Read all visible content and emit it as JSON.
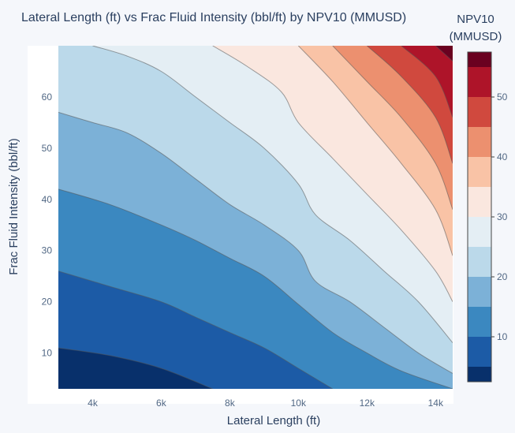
{
  "chart_data": {
    "type": "contour",
    "title": "Lateral Length (ft) vs Frac Fluid Intensity (bbl/ft) by NPV10 (MMUSD)",
    "xlabel": "Lateral Length (ft)",
    "ylabel": "Frac Fluid Intensity (bbl/ft)",
    "xlim": [
      3000,
      14500
    ],
    "ylim": [
      3,
      70
    ],
    "x_ticks": [
      {
        "value": 4000,
        "label": "4k"
      },
      {
        "value": 6000,
        "label": "6k"
      },
      {
        "value": 8000,
        "label": "8k"
      },
      {
        "value": 10000,
        "label": "10k"
      },
      {
        "value": 12000,
        "label": "12k"
      },
      {
        "value": 14000,
        "label": "14k"
      }
    ],
    "y_ticks": [
      {
        "value": 10,
        "label": "10"
      },
      {
        "value": 20,
        "label": "20"
      },
      {
        "value": 30,
        "label": "30"
      },
      {
        "value": 40,
        "label": "40"
      },
      {
        "value": 50,
        "label": "50"
      },
      {
        "value": 60,
        "label": "60"
      }
    ],
    "colorbar": {
      "title_lines": [
        "NPV10",
        "(MMUSD)"
      ],
      "range": [
        2.5,
        57.5
      ],
      "ticks": [
        {
          "value": 10,
          "label": "10"
        },
        {
          "value": 20,
          "label": "20"
        },
        {
          "value": 30,
          "label": "30"
        },
        {
          "value": 40,
          "label": "40"
        },
        {
          "value": 50,
          "label": "50"
        }
      ]
    },
    "contour_levels": [
      5,
      10,
      15,
      20,
      25,
      30,
      35,
      40,
      45,
      50,
      55
    ],
    "band_colors": [
      "#08306b",
      "#1c5ba6",
      "#3b88c0",
      "#7cb1d7",
      "#bbd9ea",
      "#e4eef4",
      "#fae7df",
      "#f9c3a6",
      "#ec906f",
      "#d0493e",
      "#ae1429",
      "#6a0120"
    ],
    "contour_lines": [
      {
        "level": 5,
        "points": [
          [
            3000,
            11
          ],
          [
            4500,
            9.5
          ],
          [
            6000,
            7
          ],
          [
            7500,
            3
          ]
        ]
      },
      {
        "level": 10,
        "points": [
          [
            3000,
            26
          ],
          [
            4500,
            23
          ],
          [
            6000,
            20
          ],
          [
            7000,
            17
          ],
          [
            8000,
            14
          ],
          [
            9000,
            11
          ],
          [
            10000,
            7
          ],
          [
            11000,
            3
          ]
        ]
      },
      {
        "level": 15,
        "points": [
          [
            3000,
            42
          ],
          [
            4500,
            39
          ],
          [
            6000,
            35
          ],
          [
            7000,
            32
          ],
          [
            8000,
            28.5
          ],
          [
            9000,
            25
          ],
          [
            10000,
            19.5
          ],
          [
            11000,
            14
          ],
          [
            12000,
            10
          ],
          [
            13000,
            6.5
          ],
          [
            14500,
            3
          ]
        ]
      },
      {
        "level": 20,
        "points": [
          [
            3000,
            57
          ],
          [
            4000,
            55
          ],
          [
            5000,
            53
          ],
          [
            6000,
            49
          ],
          [
            7000,
            44
          ],
          [
            8000,
            39
          ],
          [
            9000,
            35
          ],
          [
            10000,
            30
          ],
          [
            10500,
            24
          ],
          [
            11500,
            20
          ],
          [
            12500,
            15
          ],
          [
            13500,
            10
          ],
          [
            14500,
            6
          ]
        ]
      },
      {
        "level": 25,
        "points": [
          [
            4000,
            70
          ],
          [
            5000,
            68
          ],
          [
            6000,
            65
          ],
          [
            7000,
            60
          ],
          [
            8000,
            55
          ],
          [
            9000,
            50
          ],
          [
            10000,
            43
          ],
          [
            10500,
            37
          ],
          [
            11500,
            32
          ],
          [
            12500,
            26
          ],
          [
            13500,
            20
          ],
          [
            14500,
            12
          ]
        ]
      },
      {
        "level": 30,
        "points": [
          [
            7500,
            70
          ],
          [
            8500,
            66
          ],
          [
            9500,
            61
          ],
          [
            10000,
            55
          ],
          [
            11000,
            48
          ],
          [
            12000,
            41
          ],
          [
            13000,
            34
          ],
          [
            14000,
            26
          ],
          [
            14500,
            20
          ]
        ]
      },
      {
        "level": 35,
        "points": [
          [
            10000,
            70
          ],
          [
            11000,
            63
          ],
          [
            12000,
            55
          ],
          [
            13000,
            47
          ],
          [
            14000,
            38
          ],
          [
            14500,
            29
          ]
        ]
      },
      {
        "level": 40,
        "points": [
          [
            11000,
            70
          ],
          [
            12000,
            63
          ],
          [
            13000,
            56
          ],
          [
            14000,
            47
          ],
          [
            14500,
            38
          ]
        ]
      },
      {
        "level": 45,
        "points": [
          [
            12000,
            70
          ],
          [
            13000,
            64
          ],
          [
            14000,
            56
          ],
          [
            14500,
            47
          ]
        ]
      },
      {
        "level": 50,
        "points": [
          [
            13000,
            70
          ],
          [
            14000,
            64
          ],
          [
            14500,
            56
          ]
        ]
      },
      {
        "level": 55,
        "points": [
          [
            14000,
            70
          ],
          [
            14500,
            67
          ]
        ]
      }
    ]
  }
}
